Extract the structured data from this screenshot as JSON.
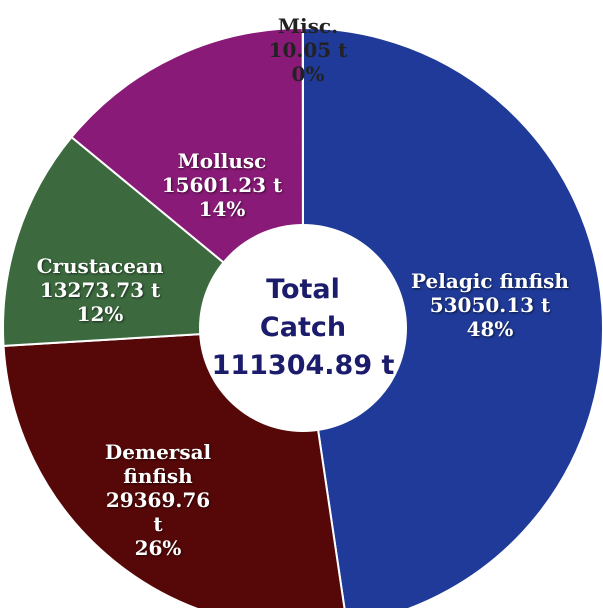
{
  "chart_data": {
    "type": "donut",
    "categories": [
      "Pelagic finfish",
      "Demersal finfish",
      "Crustacean",
      "Mollusc",
      "Misc."
    ],
    "values": [
      53050.13,
      29369.76,
      13273.73,
      15601.23,
      10.05
    ],
    "value_labels": [
      "53050.13 t",
      "29369.76 t",
      "13273.73 t",
      "15601.23 t",
      "10.05 t"
    ],
    "percentages": [
      48,
      26,
      12,
      14,
      0
    ],
    "percentage_labels": [
      "48%",
      "26%",
      "12%",
      "14%",
      "0%"
    ],
    "colors": [
      "#1f3a98",
      "#560808",
      "#3c6a3e",
      "#8a1a78",
      "#6a2a8a"
    ],
    "center_text": [
      "Total",
      "Catch",
      "111304.89 t"
    ]
  }
}
